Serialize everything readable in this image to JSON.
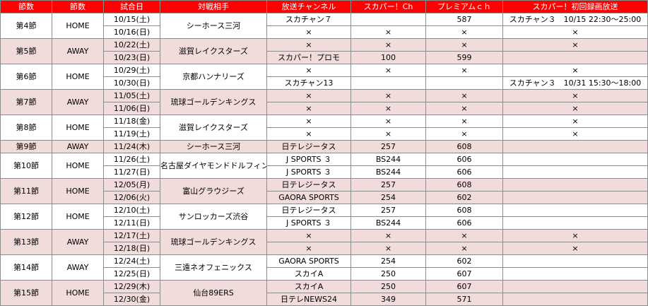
{
  "headers": [
    "節数",
    "節数",
    "試合日",
    "対戦相手",
    "放送チャンネル",
    "スカパー！Ch",
    "プレミアムｃｈ",
    "スカパー！初回録画放送"
  ],
  "matches": [
    {
      "round": "第4節",
      "venue": "HOME",
      "opponent": "シーホース三河",
      "pink": false,
      "games": [
        {
          "date": "10/15(土)",
          "channel": "スカチャン７",
          "sky_ch": "",
          "premium": "587",
          "rec": "スカチャン３　10/15 22:30～25:00"
        },
        {
          "date": "10/16(日)",
          "channel": "×",
          "sky_ch": "×",
          "premium": "×",
          "rec": "×"
        }
      ]
    },
    {
      "round": "第5節",
      "venue": "AWAY",
      "opponent": "滋賀レイクスターズ",
      "pink": true,
      "games": [
        {
          "date": "10/22(土)",
          "channel": "×",
          "sky_ch": "×",
          "premium": "×",
          "rec": "×"
        },
        {
          "date": "10/23(日)",
          "channel": "スカパー！プロモ",
          "sky_ch": "100",
          "premium": "599",
          "rec": ""
        }
      ]
    },
    {
      "round": "第6節",
      "venue": "HOME",
      "opponent": "京都ハンナリーズ",
      "pink": false,
      "games": [
        {
          "date": "10/29(土)",
          "channel": "×",
          "sky_ch": "×",
          "premium": "×",
          "rec": "×"
        },
        {
          "date": "10/30(日)",
          "channel": "スカチャン13",
          "sky_ch": "",
          "premium": "",
          "rec": "スカチャン３　10/31 15:30～18:00"
        }
      ]
    },
    {
      "round": "第7節",
      "venue": "AWAY",
      "opponent": "琉球ゴールデンキングス",
      "pink": true,
      "games": [
        {
          "date": "11/05(土)",
          "channel": "×",
          "sky_ch": "×",
          "premium": "×",
          "rec": "×"
        },
        {
          "date": "11/06(日)",
          "channel": "×",
          "sky_ch": "×",
          "premium": "×",
          "rec": "×"
        }
      ]
    },
    {
      "round": "第8節",
      "venue": "HOME",
      "opponent": "滋賀レイクスターズ",
      "pink": false,
      "games": [
        {
          "date": "11/18(金)",
          "channel": "×",
          "sky_ch": "×",
          "premium": "×",
          "rec": "×"
        },
        {
          "date": "11/19(土)",
          "channel": "×",
          "sky_ch": "×",
          "premium": "×",
          "rec": "×"
        }
      ]
    },
    {
      "round": "第9節",
      "venue": "AWAY",
      "opponent": "シーホース三河",
      "pink": true,
      "games": [
        {
          "date": "11/24(木)",
          "channel": "日テレジータス",
          "sky_ch": "257",
          "premium": "608",
          "rec": ""
        }
      ]
    },
    {
      "round": "第10節",
      "venue": "HOME",
      "opponent": "名古屋ダイヤモンドドルフィンズ",
      "pink": false,
      "games": [
        {
          "date": "11/26(土)",
          "channel": "J SPORTS ３",
          "sky_ch": "BS244",
          "premium": "606",
          "rec": ""
        },
        {
          "date": "11/27(日)",
          "channel": "J SPORTS ３",
          "sky_ch": "BS244",
          "premium": "606",
          "rec": ""
        }
      ]
    },
    {
      "round": "第11節",
      "venue": "HOME",
      "opponent": "富山グラウジーズ",
      "pink": true,
      "games": [
        {
          "date": "12/05(月)",
          "channel": "日テレジータス",
          "sky_ch": "257",
          "premium": "608",
          "rec": ""
        },
        {
          "date": "12/06(火)",
          "channel": "GAORA SPORTS",
          "sky_ch": "254",
          "premium": "602",
          "rec": ""
        }
      ]
    },
    {
      "round": "第12節",
      "venue": "HOME",
      "opponent": "サンロッカーズ渋谷",
      "pink": false,
      "games": [
        {
          "date": "12/10(土)",
          "channel": "日テレジータス",
          "sky_ch": "257",
          "premium": "608",
          "rec": ""
        },
        {
          "date": "12/11(日)",
          "channel": "J SPORTS ３",
          "sky_ch": "BS244",
          "premium": "606",
          "rec": ""
        }
      ]
    },
    {
      "round": "第13節",
      "venue": "AWAY",
      "opponent": "琉球ゴールデンキングス",
      "pink": true,
      "games": [
        {
          "date": "12/17(土)",
          "channel": "×",
          "sky_ch": "×",
          "premium": "×",
          "rec": "×"
        },
        {
          "date": "12/18(日)",
          "channel": "×",
          "sky_ch": "×",
          "premium": "×",
          "rec": "×"
        }
      ]
    },
    {
      "round": "第14節",
      "venue": "AWAY",
      "opponent": "三遠ネオフェニックス",
      "pink": false,
      "games": [
        {
          "date": "12/24(土)",
          "channel": "GAORA SPORTS",
          "sky_ch": "254",
          "premium": "602",
          "rec": ""
        },
        {
          "date": "12/25(日)",
          "channel": "スカイA",
          "sky_ch": "250",
          "premium": "607",
          "rec": ""
        }
      ]
    },
    {
      "round": "第15節",
      "venue": "HOME",
      "opponent": "仙台89ERS",
      "pink": true,
      "games": [
        {
          "date": "12/29(木)",
          "channel": "スカイA",
          "sky_ch": "250",
          "premium": "607",
          "rec": ""
        },
        {
          "date": "12/30(金)",
          "channel": "日テレNEWS24",
          "sky_ch": "349",
          "premium": "571",
          "rec": ""
        }
      ]
    }
  ],
  "colors": {
    "header_bg": "#ff0000",
    "header_text": "#ffffff",
    "pink_row": "#f2dcdb",
    "border": "#8c8c8c"
  }
}
